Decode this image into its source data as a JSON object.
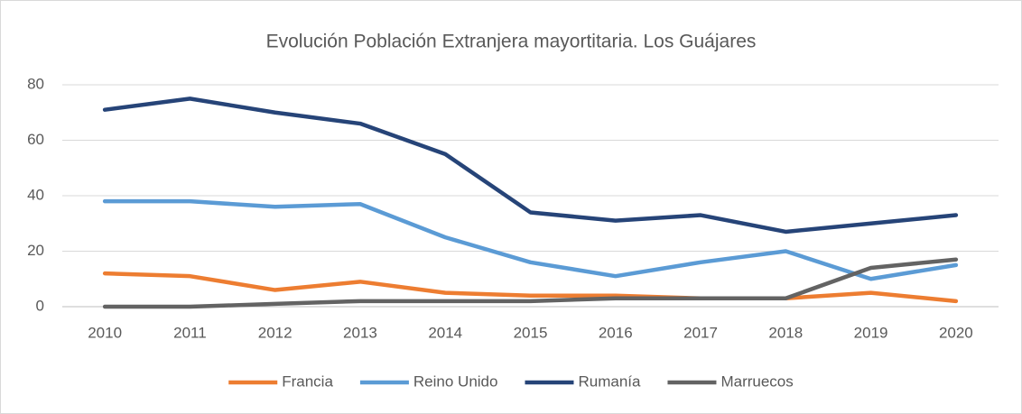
{
  "chart_data": {
    "type": "line",
    "title": "Evolución Población Extranjera mayortitaria. Los Guájares",
    "categories": [
      "2010",
      "2011",
      "2012",
      "2013",
      "2014",
      "2015",
      "2016",
      "2017",
      "2018",
      "2019",
      "2020"
    ],
    "series": [
      {
        "name": "Francia",
        "color": "#ed7d31",
        "values": [
          12,
          11,
          6,
          9,
          5,
          4,
          4,
          3,
          3,
          5,
          2
        ]
      },
      {
        "name": "Reino Unido",
        "color": "#5b9bd5",
        "values": [
          38,
          38,
          36,
          37,
          25,
          16,
          11,
          16,
          20,
          10,
          15
        ]
      },
      {
        "name": "Rumanía",
        "color": "#264478",
        "values": [
          71,
          75,
          70,
          66,
          55,
          34,
          31,
          33,
          27,
          30,
          33
        ]
      },
      {
        "name": "Marruecos",
        "color": "#636363",
        "values": [
          0,
          0,
          1,
          2,
          2,
          2,
          3,
          3,
          3,
          14,
          17
        ]
      }
    ],
    "ylim": [
      0,
      80
    ],
    "yticks": [
      0,
      20,
      40,
      60,
      80
    ],
    "grid": true,
    "legend": "bottom"
  }
}
